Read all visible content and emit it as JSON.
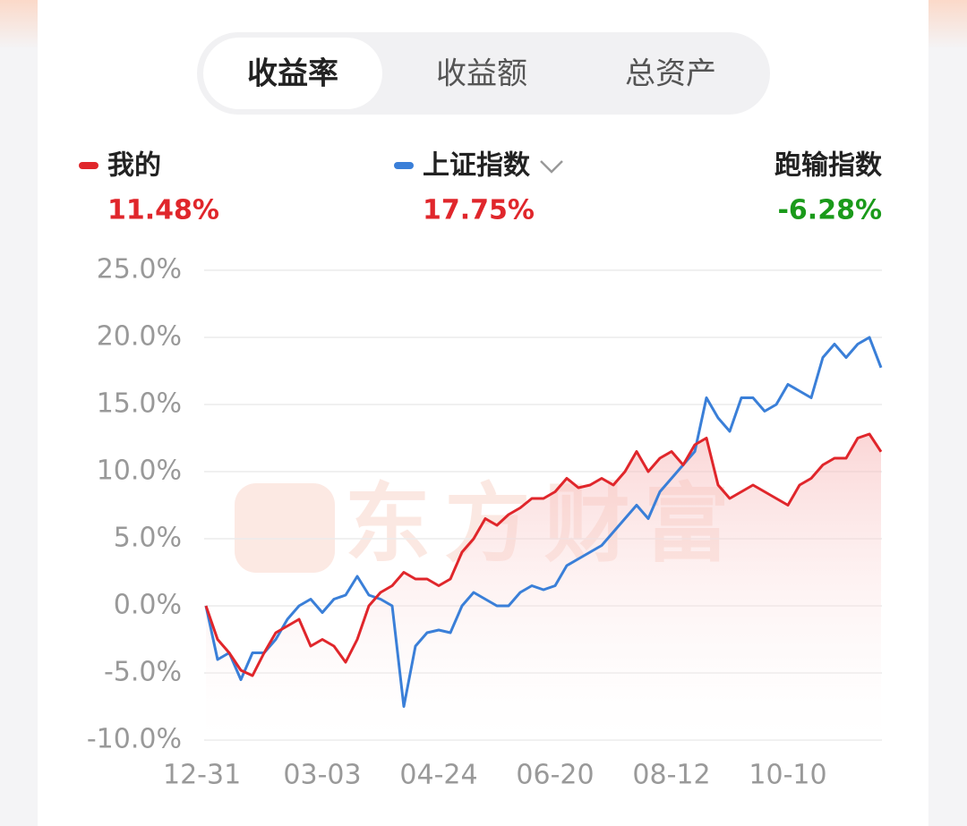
{
  "tabs": {
    "items": [
      "收益率",
      "收益额",
      "总资产"
    ],
    "selected": 0
  },
  "chart_data": {
    "type": "line",
    "watermark": "东方财富",
    "categories": [
      "12-31",
      null,
      null,
      null,
      null,
      null,
      null,
      null,
      null,
      null,
      "03-03",
      null,
      null,
      null,
      null,
      null,
      null,
      null,
      null,
      null,
      "04-24",
      null,
      null,
      null,
      null,
      null,
      null,
      null,
      null,
      null,
      "06-20",
      null,
      null,
      null,
      null,
      null,
      null,
      null,
      null,
      null,
      "08-12",
      null,
      null,
      null,
      null,
      null,
      null,
      null,
      null,
      null,
      "10-10",
      null,
      null,
      null,
      null,
      null,
      null,
      null,
      null
    ],
    "series": [
      {
        "name": "我的",
        "color": "#e0262b",
        "change_label": "11.48%",
        "label_color": "#e0262b",
        "area": true,
        "values": [
          0,
          -2.5,
          -3.5,
          -4.8,
          -5.2,
          -3.5,
          -2.0,
          -1.5,
          -1.0,
          -3.0,
          -2.5,
          -3.0,
          -4.2,
          -2.5,
          0,
          1.0,
          1.5,
          2.5,
          2.0,
          2.0,
          1.5,
          2.0,
          4.0,
          5.0,
          6.5,
          6.0,
          6.8,
          7.3,
          8.0,
          8.0,
          8.5,
          9.5,
          8.8,
          9.0,
          9.5,
          9.0,
          10.0,
          11.5,
          10.0,
          11.0,
          11.5,
          10.5,
          12.0,
          12.5,
          9.0,
          8.0,
          8.5,
          9.0,
          8.5,
          8.0,
          7.5,
          9.0,
          9.5,
          10.5,
          11.0,
          11.0,
          12.5,
          12.8,
          11.48
        ]
      },
      {
        "name": "上证指数",
        "color": "#3a7fd8",
        "change_label": "17.75%",
        "label_color": "#e0262b",
        "dropdown": true,
        "values": [
          0,
          -4.0,
          -3.5,
          -5.5,
          -3.5,
          -3.5,
          -2.5,
          -1.0,
          0,
          0.5,
          -0.5,
          0.5,
          0.8,
          2.2,
          0.8,
          0.5,
          0,
          -7.5,
          -3.0,
          -2.0,
          -1.8,
          -2.0,
          0,
          1.0,
          0.5,
          0,
          0,
          1.0,
          1.5,
          1.2,
          1.5,
          3.0,
          3.5,
          4.0,
          4.5,
          5.5,
          6.5,
          7.5,
          6.5,
          8.5,
          9.5,
          10.5,
          11.5,
          15.5,
          14.0,
          13.0,
          15.5,
          15.5,
          14.5,
          15.0,
          16.5,
          16.0,
          15.5,
          18.5,
          19.5,
          18.5,
          19.5,
          20.0,
          17.75
        ]
      }
    ],
    "relative": {
      "name": "跑输指数",
      "label": "-6.28%",
      "color": "#1a9a1a"
    },
    "ylim": [
      -10,
      25
    ],
    "yticks": [
      {
        "value": -10,
        "label": "-10.0%"
      },
      {
        "value": -5,
        "label": "-5.0%"
      },
      {
        "value": 0,
        "label": "0.0%"
      },
      {
        "value": 5,
        "label": "5.0%"
      },
      {
        "value": 10,
        "label": "10.0%"
      },
      {
        "value": 15,
        "label": "15.0%"
      },
      {
        "value": 20,
        "label": "20.0%"
      },
      {
        "value": 25,
        "label": "25.0%"
      }
    ],
    "grid": true
  }
}
